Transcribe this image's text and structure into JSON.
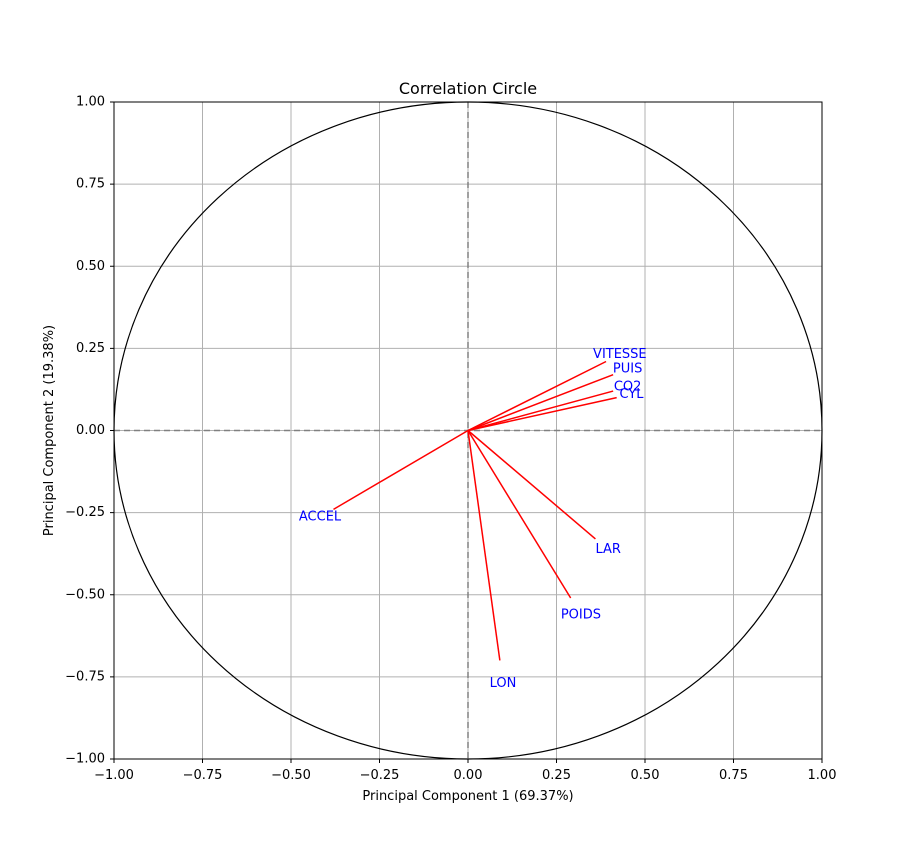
{
  "chart_data": {
    "type": "scatter",
    "title": "Correlation Circle",
    "xlabel": "Principal Component 1 (69.37%)",
    "ylabel": "Principal Component 2 (19.38%)",
    "xlim": [
      -1.0,
      1.0
    ],
    "ylim": [
      -1.0,
      1.0
    ],
    "xticks": [
      -1.0,
      -0.75,
      -0.5,
      -0.25,
      0.0,
      0.25,
      0.5,
      0.75,
      1.0
    ],
    "yticks": [
      -1.0,
      -0.75,
      -0.5,
      -0.25,
      0.0,
      0.25,
      0.5,
      0.75,
      1.0
    ],
    "xtick_labels": [
      "−1.00",
      "−0.75",
      "−0.50",
      "−0.25",
      "0.00",
      "0.25",
      "0.50",
      "0.75",
      "1.00"
    ],
    "ytick_labels": [
      "−1.00",
      "−0.75",
      "−0.50",
      "−0.25",
      "0.00",
      "0.25",
      "0.50",
      "0.75",
      "1.00"
    ],
    "grid": true,
    "unit_circle": true,
    "arrow_color": "#ff0000",
    "label_color": "#0000ff",
    "variables": [
      {
        "name": "CYL",
        "x": 0.42,
        "y": 0.1
      },
      {
        "name": "PUIS",
        "x": 0.41,
        "y": 0.17
      },
      {
        "name": "LON",
        "x": 0.09,
        "y": -0.7
      },
      {
        "name": "LAR",
        "x": 0.36,
        "y": -0.33
      },
      {
        "name": "POIDS",
        "x": 0.29,
        "y": -0.51
      },
      {
        "name": "VITESSE",
        "x": 0.39,
        "y": 0.21
      },
      {
        "name": "ACCEL",
        "x": -0.38,
        "y": -0.24
      },
      {
        "name": "CO2",
        "x": 0.41,
        "y": 0.12
      }
    ]
  }
}
